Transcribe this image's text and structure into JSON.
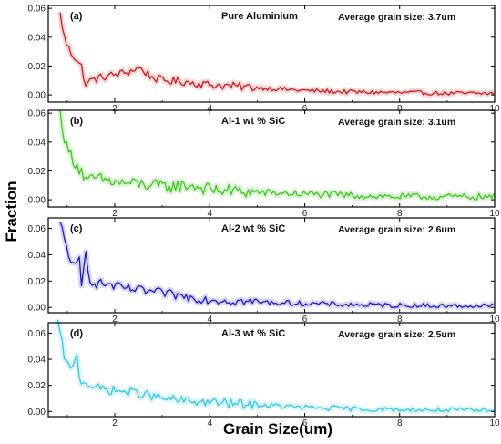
{
  "figure": {
    "xlabel": "Grain Size(um)",
    "ylabel": "Fraction"
  },
  "chart_data": [
    {
      "type": "line",
      "panel_label": "(a)",
      "title": "Pure Aluminium",
      "annotation": "Average grain size: 3.7um",
      "color": "#cc1a1a",
      "xlim": [
        0.6,
        10
      ],
      "ylim": [
        -0.005,
        0.062
      ],
      "xticks": [
        2,
        4,
        6,
        8,
        10
      ],
      "yticks": [
        0.0,
        0.02,
        0.04,
        0.06
      ],
      "ytick_labels": [
        "0.00",
        "0.02",
        "0.04",
        "0.06"
      ],
      "grid": false,
      "keypoints": [
        [
          0.85,
          0.056
        ],
        [
          0.9,
          0.047
        ],
        [
          0.95,
          0.038
        ],
        [
          1.0,
          0.034
        ],
        [
          1.1,
          0.028
        ],
        [
          1.2,
          0.025
        ],
        [
          1.3,
          0.02
        ],
        [
          1.35,
          0.008
        ],
        [
          1.5,
          0.01
        ],
        [
          1.7,
          0.012
        ],
        [
          2.0,
          0.014
        ],
        [
          2.3,
          0.016
        ],
        [
          2.5,
          0.019
        ],
        [
          2.8,
          0.012
        ],
        [
          3.0,
          0.01
        ],
        [
          3.5,
          0.009
        ],
        [
          4.0,
          0.007
        ],
        [
          4.5,
          0.006
        ],
        [
          5.0,
          0.005
        ],
        [
          6.0,
          0.003
        ],
        [
          7.0,
          0.002
        ],
        [
          8.0,
          0.0015
        ],
        [
          9.0,
          0.001
        ],
        [
          10.0,
          0.001
        ]
      ],
      "noise": 0.0028
    },
    {
      "type": "line",
      "panel_label": "(b)",
      "title": "Al-1 wt % SiC",
      "annotation": "Average grain size: 3.1um",
      "color": "#3cc81e",
      "xlim": [
        0.6,
        10
      ],
      "ylim": [
        -0.005,
        0.062
      ],
      "xticks": [
        2,
        4,
        6,
        8,
        10
      ],
      "yticks": [
        0.0,
        0.02,
        0.04,
        0.06
      ],
      "ytick_labels": [
        "0.00",
        "0.02",
        "0.04",
        "0.06"
      ],
      "grid": false,
      "keypoints": [
        [
          0.85,
          0.06
        ],
        [
          0.9,
          0.052
        ],
        [
          0.95,
          0.04
        ],
        [
          1.0,
          0.035
        ],
        [
          1.1,
          0.03
        ],
        [
          1.2,
          0.024
        ],
        [
          1.3,
          0.02
        ],
        [
          1.4,
          0.012
        ],
        [
          1.6,
          0.015
        ],
        [
          2.0,
          0.012
        ],
        [
          2.5,
          0.011
        ],
        [
          3.0,
          0.009
        ],
        [
          3.6,
          0.01
        ],
        [
          4.0,
          0.007
        ],
        [
          4.5,
          0.006
        ],
        [
          5.0,
          0.005
        ],
        [
          6.0,
          0.004
        ],
        [
          7.0,
          0.003
        ],
        [
          8.0,
          0.002
        ],
        [
          9.0,
          0.002
        ],
        [
          10.0,
          0.002
        ]
      ],
      "noise": 0.0045
    },
    {
      "type": "line",
      "panel_label": "(c)",
      "title": "Al-2 wt % SiC",
      "annotation": "Average grain size: 2.6um",
      "color": "#1a1ac8",
      "xlim": [
        0.6,
        10
      ],
      "ylim": [
        -0.004,
        0.068
      ],
      "xticks": [
        2,
        4,
        6,
        8,
        10
      ],
      "yticks": [
        0.0,
        0.02,
        0.04,
        0.06
      ],
      "ytick_labels": [
        "0.00",
        "0.02",
        "0.04",
        "0.06"
      ],
      "grid": false,
      "keypoints": [
        [
          0.85,
          0.063
        ],
        [
          0.9,
          0.058
        ],
        [
          0.95,
          0.05
        ],
        [
          1.0,
          0.045
        ],
        [
          1.1,
          0.032
        ],
        [
          1.2,
          0.03
        ],
        [
          1.25,
          0.04
        ],
        [
          1.3,
          0.015
        ],
        [
          1.35,
          0.03
        ],
        [
          1.4,
          0.045
        ],
        [
          1.45,
          0.025
        ],
        [
          1.5,
          0.02
        ],
        [
          1.6,
          0.018
        ],
        [
          1.8,
          0.018
        ],
        [
          2.0,
          0.016
        ],
        [
          2.5,
          0.013
        ],
        [
          3.0,
          0.011
        ],
        [
          3.5,
          0.008
        ],
        [
          4.0,
          0.006
        ],
        [
          5.0,
          0.004
        ],
        [
          6.0,
          0.003
        ],
        [
          7.0,
          0.002
        ],
        [
          8.0,
          0.0015
        ],
        [
          9.0,
          0.001
        ],
        [
          10.0,
          0.001
        ]
      ],
      "noise": 0.0035
    },
    {
      "type": "line",
      "panel_label": "(d)",
      "title": "Al-3 wt % SiC",
      "annotation": "Average grain size: 2.5um",
      "color": "#33c8e6",
      "xlim": [
        0.6,
        10
      ],
      "ylim": [
        -0.004,
        0.068
      ],
      "xticks": [
        2,
        4,
        6,
        8,
        10
      ],
      "yticks": [
        0.0,
        0.02,
        0.04,
        0.06
      ],
      "ytick_labels": [
        "0.00",
        "0.02",
        "0.04",
        "0.06"
      ],
      "grid": false,
      "keypoints": [
        [
          0.8,
          0.068
        ],
        [
          0.85,
          0.06
        ],
        [
          0.9,
          0.05
        ],
        [
          0.95,
          0.04
        ],
        [
          1.0,
          0.036
        ],
        [
          1.1,
          0.03
        ],
        [
          1.2,
          0.048
        ],
        [
          1.25,
          0.025
        ],
        [
          1.4,
          0.022
        ],
        [
          1.6,
          0.018
        ],
        [
          2.0,
          0.016
        ],
        [
          2.5,
          0.014
        ],
        [
          3.0,
          0.01
        ],
        [
          3.5,
          0.008
        ],
        [
          4.0,
          0.007
        ],
        [
          5.0,
          0.005
        ],
        [
          6.0,
          0.003
        ],
        [
          7.0,
          0.002
        ],
        [
          8.0,
          0.001
        ],
        [
          9.0,
          0.001
        ],
        [
          10.0,
          0.0005
        ]
      ],
      "noise": 0.0035
    }
  ]
}
